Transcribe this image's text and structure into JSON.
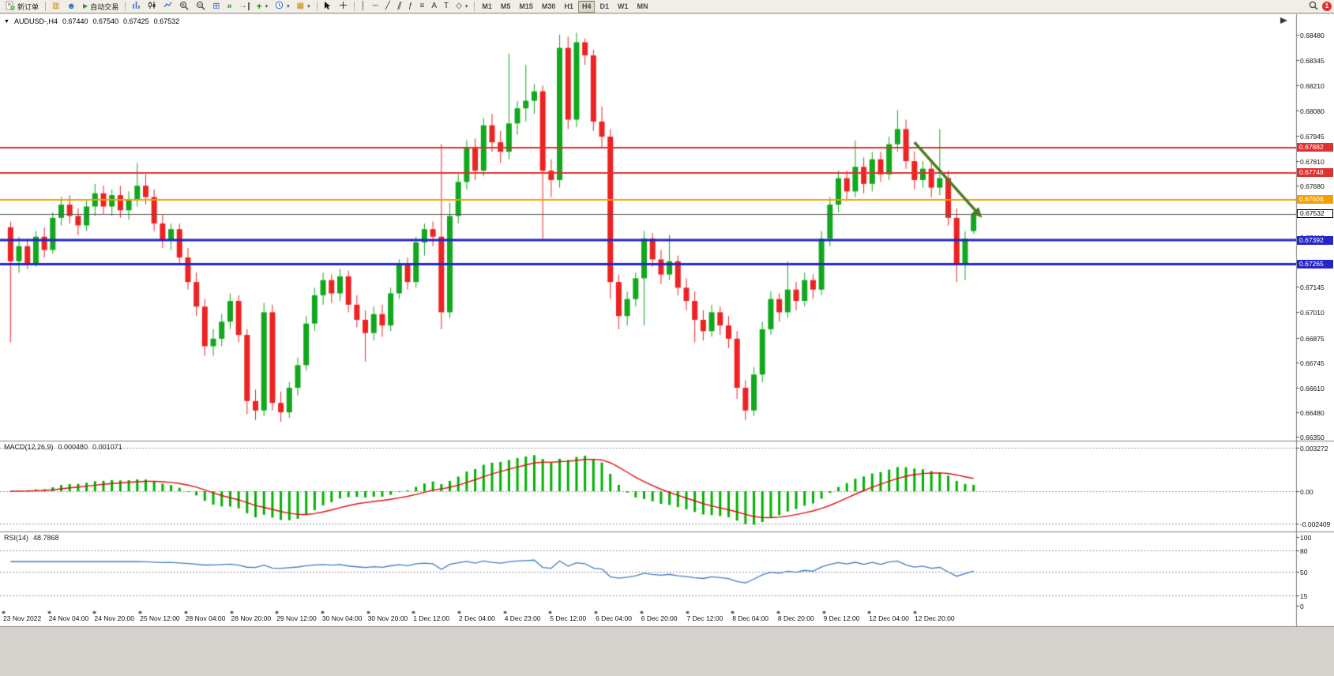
{
  "toolbar": {
    "new_order_label": "新订单",
    "auto_trading_label": "自动交易",
    "text_tool": "A",
    "label_tool": "T",
    "timeframes": [
      "M1",
      "M5",
      "M15",
      "M30",
      "H1",
      "H4",
      "D1",
      "W1",
      "MN"
    ],
    "active_timeframe": "H4",
    "notification_count": "1"
  },
  "chart": {
    "title": "AUDUSD-,H4",
    "ohlc": [
      "0.67440",
      "0.67540",
      "0.67425",
      "0.67532"
    ]
  },
  "chart_data": {
    "type": "candlestick+indicators",
    "symbol": "AUDUSD-",
    "timeframe": "H4",
    "up_color": "#10a81c",
    "down_color": "#ee2222",
    "main_ylim": [
      0.6633,
      0.6858
    ],
    "price_axis_labels": [
      "0.68480",
      "0.68345",
      "0.68210",
      "0.68080",
      "0.67945",
      "0.67810",
      "0.67680",
      "0.67545",
      "0.67410",
      "0.67275",
      "0.67145",
      "0.67010",
      "0.66875",
      "0.66745",
      "0.66610",
      "0.66480",
      "0.66350"
    ],
    "x_axis_dates": [
      "23 Nov 2022",
      "24 Nov 04:00",
      "24 Nov 20:00",
      "25 Nov 12:00",
      "28 Nov 04:00",
      "28 Nov 20:00",
      "29 Nov 12:00",
      "30 Nov 04:00",
      "30 Nov 20:00",
      "1 Dec 12:00",
      "2 Dec 04:00",
      "4 Dec 23:00",
      "5 Dec 12:00",
      "6 Dec 04:00",
      "6 Dec 20:00",
      "7 Dec 12:00",
      "8 Dec 04:00",
      "8 Dec 20:00",
      "9 Dec 12:00",
      "12 Dec 04:00",
      "12 Dec 20:00"
    ],
    "candles": [
      [
        0.6746,
        0.6749,
        0.6685,
        0.6728
      ],
      [
        0.6728,
        0.6741,
        0.6722,
        0.6736
      ],
      [
        0.6736,
        0.674,
        0.6724,
        0.6727
      ],
      [
        0.6727,
        0.6744,
        0.6725,
        0.6741
      ],
      [
        0.6741,
        0.6746,
        0.673,
        0.6734
      ],
      [
        0.6734,
        0.6754,
        0.6732,
        0.6751
      ],
      [
        0.6751,
        0.6762,
        0.6747,
        0.6758
      ],
      [
        0.6758,
        0.6763,
        0.6748,
        0.6752
      ],
      [
        0.6752,
        0.6756,
        0.6742,
        0.6747
      ],
      [
        0.6747,
        0.676,
        0.6744,
        0.6757
      ],
      [
        0.6757,
        0.6769,
        0.6752,
        0.6764
      ],
      [
        0.6764,
        0.6768,
        0.6753,
        0.6757
      ],
      [
        0.6757,
        0.6766,
        0.6752,
        0.6763
      ],
      [
        0.6763,
        0.6768,
        0.6751,
        0.6755
      ],
      [
        0.6755,
        0.6765,
        0.675,
        0.6761
      ],
      [
        0.6761,
        0.678,
        0.6757,
        0.6768
      ],
      [
        0.6768,
        0.6774,
        0.6758,
        0.6762
      ],
      [
        0.6762,
        0.6766,
        0.6744,
        0.6748
      ],
      [
        0.6748,
        0.6753,
        0.6735,
        0.6739
      ],
      [
        0.6739,
        0.6748,
        0.6734,
        0.6745
      ],
      [
        0.6745,
        0.6748,
        0.6726,
        0.673
      ],
      [
        0.673,
        0.6735,
        0.6713,
        0.6717
      ],
      [
        0.6717,
        0.6722,
        0.6699,
        0.6704
      ],
      [
        0.6704,
        0.6708,
        0.6678,
        0.6683
      ],
      [
        0.6683,
        0.6692,
        0.6678,
        0.6687
      ],
      [
        0.6687,
        0.67,
        0.6683,
        0.6696
      ],
      [
        0.6696,
        0.6711,
        0.6692,
        0.6707
      ],
      [
        0.6707,
        0.671,
        0.6685,
        0.6689
      ],
      [
        0.6689,
        0.6692,
        0.6647,
        0.6654
      ],
      [
        0.6654,
        0.666,
        0.6644,
        0.6649
      ],
      [
        0.6649,
        0.6706,
        0.6646,
        0.6701
      ],
      [
        0.6701,
        0.6705,
        0.6649,
        0.6653
      ],
      [
        0.6653,
        0.6659,
        0.6643,
        0.6648
      ],
      [
        0.6648,
        0.6664,
        0.6645,
        0.6661
      ],
      [
        0.6661,
        0.6677,
        0.6657,
        0.6673
      ],
      [
        0.6673,
        0.6699,
        0.667,
        0.6695
      ],
      [
        0.6695,
        0.6714,
        0.6691,
        0.671
      ],
      [
        0.671,
        0.6722,
        0.6705,
        0.6718
      ],
      [
        0.6718,
        0.6721,
        0.6706,
        0.6711
      ],
      [
        0.6711,
        0.6724,
        0.6707,
        0.672
      ],
      [
        0.672,
        0.6723,
        0.6701,
        0.6705
      ],
      [
        0.6705,
        0.671,
        0.6693,
        0.6697
      ],
      [
        0.6697,
        0.6702,
        0.6675,
        0.669
      ],
      [
        0.669,
        0.6704,
        0.6686,
        0.67
      ],
      [
        0.67,
        0.6705,
        0.6688,
        0.6694
      ],
      [
        0.6694,
        0.6714,
        0.6691,
        0.6711
      ],
      [
        0.6711,
        0.6729,
        0.6708,
        0.6726
      ],
      [
        0.6726,
        0.673,
        0.6713,
        0.6717
      ],
      [
        0.6717,
        0.6741,
        0.6714,
        0.6738
      ],
      [
        0.6738,
        0.6748,
        0.6731,
        0.6745
      ],
      [
        0.6745,
        0.6749,
        0.6736,
        0.6741
      ],
      [
        0.6741,
        0.679,
        0.6692,
        0.6701
      ],
      [
        0.6701,
        0.6759,
        0.6698,
        0.6752
      ],
      [
        0.6752,
        0.6774,
        0.6748,
        0.677
      ],
      [
        0.677,
        0.6792,
        0.6766,
        0.6788
      ],
      [
        0.6788,
        0.6793,
        0.6771,
        0.6776
      ],
      [
        0.6776,
        0.6804,
        0.6773,
        0.68
      ],
      [
        0.68,
        0.6806,
        0.6786,
        0.6791
      ],
      [
        0.6791,
        0.6797,
        0.678,
        0.6786
      ],
      [
        0.6786,
        0.6838,
        0.6782,
        0.6801
      ],
      [
        0.6801,
        0.6813,
        0.6795,
        0.6809
      ],
      [
        0.6809,
        0.6832,
        0.6802,
        0.6813
      ],
      [
        0.6813,
        0.6822,
        0.6806,
        0.6818
      ],
      [
        0.6818,
        0.6821,
        0.674,
        0.6776
      ],
      [
        0.6776,
        0.6782,
        0.6762,
        0.6771
      ],
      [
        0.6771,
        0.6848,
        0.6767,
        0.6841
      ],
      [
        0.6841,
        0.6847,
        0.6798,
        0.6803
      ],
      [
        0.6803,
        0.6849,
        0.6799,
        0.6844
      ],
      [
        0.6844,
        0.6846,
        0.6832,
        0.6837
      ],
      [
        0.6837,
        0.684,
        0.6797,
        0.6802
      ],
      [
        0.6802,
        0.681,
        0.6788,
        0.6794
      ],
      [
        0.6794,
        0.6798,
        0.6708,
        0.6717
      ],
      [
        0.6717,
        0.6721,
        0.6692,
        0.6699
      ],
      [
        0.6699,
        0.6712,
        0.6694,
        0.6708
      ],
      [
        0.6708,
        0.6722,
        0.6704,
        0.6719
      ],
      [
        0.6719,
        0.6744,
        0.6694,
        0.674
      ],
      [
        0.674,
        0.6743,
        0.6725,
        0.6729
      ],
      [
        0.6729,
        0.6734,
        0.6716,
        0.6721
      ],
      [
        0.6721,
        0.6742,
        0.6718,
        0.6728
      ],
      [
        0.6728,
        0.6731,
        0.671,
        0.6714
      ],
      [
        0.6714,
        0.6719,
        0.6702,
        0.6707
      ],
      [
        0.6707,
        0.6712,
        0.6685,
        0.6697
      ],
      [
        0.6697,
        0.6702,
        0.6686,
        0.6691
      ],
      [
        0.6691,
        0.6705,
        0.6688,
        0.6701
      ],
      [
        0.6701,
        0.6704,
        0.6689,
        0.6694
      ],
      [
        0.6694,
        0.6699,
        0.6682,
        0.6687
      ],
      [
        0.6687,
        0.6691,
        0.6655,
        0.6661
      ],
      [
        0.6661,
        0.6665,
        0.6644,
        0.6649
      ],
      [
        0.6649,
        0.6672,
        0.6646,
        0.6668
      ],
      [
        0.6668,
        0.6696,
        0.6664,
        0.6692
      ],
      [
        0.6692,
        0.6712,
        0.6689,
        0.6708
      ],
      [
        0.6708,
        0.6711,
        0.6696,
        0.6701
      ],
      [
        0.6701,
        0.6728,
        0.6698,
        0.6713
      ],
      [
        0.6713,
        0.6717,
        0.6702,
        0.6707
      ],
      [
        0.6707,
        0.6722,
        0.6704,
        0.6718
      ],
      [
        0.6718,
        0.6721,
        0.6708,
        0.6713
      ],
      [
        0.6713,
        0.6744,
        0.671,
        0.674
      ],
      [
        0.674,
        0.6762,
        0.6736,
        0.6758
      ],
      [
        0.6758,
        0.6776,
        0.6754,
        0.6772
      ],
      [
        0.6772,
        0.6776,
        0.676,
        0.6765
      ],
      [
        0.6765,
        0.6792,
        0.6762,
        0.6778
      ],
      [
        0.6778,
        0.6783,
        0.6764,
        0.6769
      ],
      [
        0.6769,
        0.6786,
        0.6765,
        0.6782
      ],
      [
        0.6782,
        0.6786,
        0.677,
        0.6774
      ],
      [
        0.6774,
        0.6794,
        0.6771,
        0.679
      ],
      [
        0.679,
        0.6808,
        0.6786,
        0.6798
      ],
      [
        0.6798,
        0.6803,
        0.6777,
        0.6781
      ],
      [
        0.6781,
        0.6786,
        0.6766,
        0.6771
      ],
      [
        0.6771,
        0.6781,
        0.6767,
        0.6777
      ],
      [
        0.6777,
        0.6781,
        0.6762,
        0.6767
      ],
      [
        0.6767,
        0.6798,
        0.6763,
        0.6772
      ],
      [
        0.6772,
        0.6776,
        0.6747,
        0.6751
      ],
      [
        0.6751,
        0.6756,
        0.6717,
        0.6727
      ],
      [
        0.6727,
        0.6744,
        0.6718,
        0.674
      ],
      [
        0.6744,
        0.6754,
        0.67425,
        0.67532
      ]
    ],
    "hlines": [
      {
        "price": 0.67882,
        "label": "0.67882",
        "color": "#e03131",
        "weight": 2
      },
      {
        "price": 0.67748,
        "label": "0.67748",
        "color": "#e03131",
        "weight": 2
      },
      {
        "price": 0.67606,
        "label": "0.67606",
        "color": "#f0a000",
        "weight": 2
      },
      {
        "price": 0.67392,
        "label": "0.67392",
        "color": "#2525c8",
        "weight": 3
      },
      {
        "price": 0.67265,
        "label": "0.67265",
        "color": "#2525c8",
        "weight": 3
      }
    ],
    "current_price": {
      "price": 0.67532,
      "label": "0.67532",
      "line_color": "#555555"
    },
    "arrow": {
      "from_index": 107,
      "from_price": 0.6791,
      "to_index": 115,
      "to_price": 0.6751,
      "color": "#4a7a22"
    },
    "macd": {
      "label": "MACD(12,26,9)",
      "value_main": "0.000480",
      "value_signal": "0.001071",
      "params": [
        12,
        26,
        9
      ],
      "bar_color": "#00b200",
      "signal_color": "#e01010",
      "ylim": [
        -0.00303,
        0.00375
      ],
      "axis_labels": [
        {
          "text": "0.003272",
          "value": 0.003272
        },
        {
          "text": "0.00",
          "value": 0
        },
        {
          "text": "-0.002409",
          "value": -0.002409
        }
      ]
    },
    "rsi": {
      "label": "RSI(14)",
      "value": "48.7868",
      "period": 14,
      "line_color": "#3f7cc4",
      "ylim": [
        0,
        100
      ],
      "levels": [
        80,
        50,
        15
      ],
      "axis_labels": [
        {
          "text": "100",
          "value": 100
        },
        {
          "text": "80",
          "value": 80
        },
        {
          "text": "50",
          "value": 50
        },
        {
          "text": "15",
          "value": 15
        },
        {
          "text": "0",
          "value": 0
        }
      ]
    }
  }
}
